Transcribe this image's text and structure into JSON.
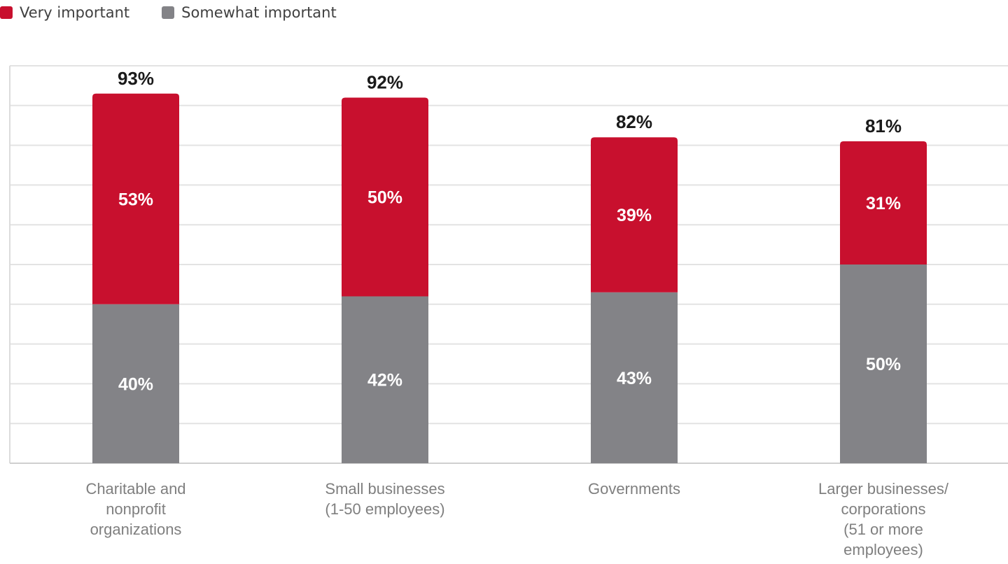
{
  "chart_data": {
    "type": "bar",
    "stacked": true,
    "categories": [
      "Charitable and nonprofit organizations",
      "Small businesses (1-50 employees)",
      "Governments",
      "Larger businesses/ corporations (51 or more employees)"
    ],
    "category_lines": [
      [
        "Charitable and",
        "nonprofit",
        "organizations"
      ],
      [
        "Small businesses",
        "(1-50 employees)"
      ],
      [
        "Governments"
      ],
      [
        "Larger businesses/",
        "corporations",
        "(51 or more",
        "employees)"
      ]
    ],
    "series": [
      {
        "name": "Somewhat important",
        "color": "#838387",
        "values": [
          40,
          42,
          43,
          50
        ]
      },
      {
        "name": "Very important",
        "color": "#c8102e",
        "values": [
          53,
          50,
          39,
          31
        ]
      }
    ],
    "totals": [
      93,
      92,
      82,
      81
    ],
    "ylim": [
      0,
      100
    ],
    "grid": true,
    "legend": "top-left",
    "title": "",
    "xlabel": "",
    "ylabel": ""
  },
  "legend": [
    {
      "label": "Very important",
      "color": "#c8102e"
    },
    {
      "label": "Somewhat important",
      "color": "#838387"
    }
  ]
}
